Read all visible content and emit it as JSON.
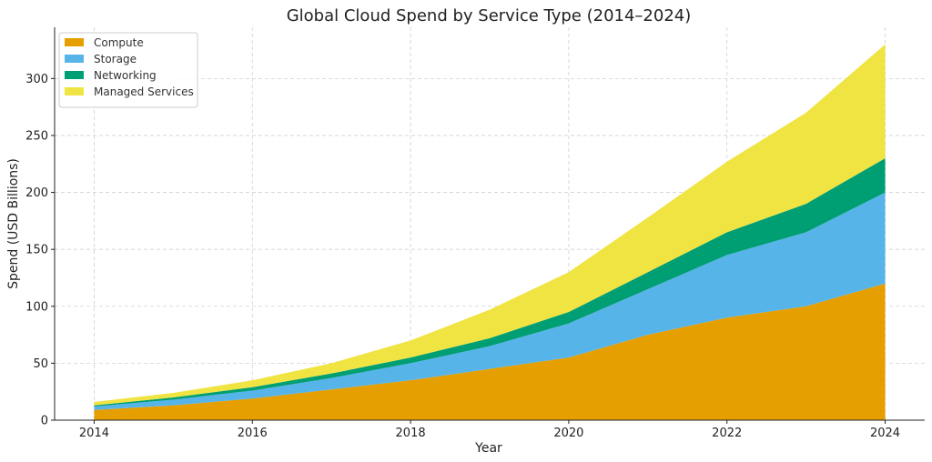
{
  "chart_data": {
    "type": "area",
    "stacked": true,
    "title": "Global Cloud Spend by Service Type (2014–2024)",
    "xlabel": "Year",
    "ylabel": "Spend (USD Billions)",
    "x": [
      2014,
      2015,
      2016,
      2017,
      2018,
      2019,
      2020,
      2021,
      2022,
      2023,
      2024
    ],
    "xticks": [
      "2014",
      "2016",
      "2018",
      "2020",
      "2022",
      "2024"
    ],
    "yticks": [
      "0",
      "50",
      "100",
      "150",
      "200",
      "250",
      "300"
    ],
    "xlim": [
      2013.5,
      2024.5
    ],
    "ylim": [
      0,
      345
    ],
    "grid": true,
    "legend_position": "top-left",
    "series": [
      {
        "name": "Compute",
        "color": "#E69F00",
        "values": [
          9,
          13,
          19,
          27,
          35,
          45,
          55,
          75,
          90,
          100,
          120
        ]
      },
      {
        "name": "Storage",
        "color": "#56B4E9",
        "values": [
          3,
          5,
          7,
          10,
          15,
          20,
          30,
          40,
          55,
          65,
          80
        ]
      },
      {
        "name": "Networking",
        "color": "#009E73",
        "values": [
          1,
          2,
          3,
          4,
          5,
          7,
          10,
          15,
          20,
          25,
          30
        ]
      },
      {
        "name": "Managed Services",
        "color": "#F0E442",
        "values": [
          3,
          4,
          6,
          9,
          15,
          25,
          35,
          48,
          62,
          80,
          100
        ]
      }
    ]
  }
}
